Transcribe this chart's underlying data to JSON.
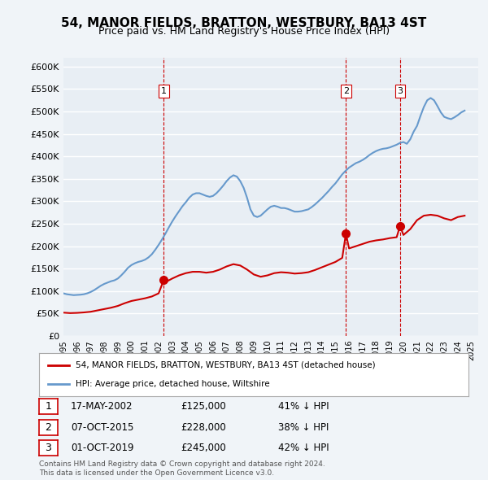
{
  "title": "54, MANOR FIELDS, BRATTON, WESTBURY, BA13 4ST",
  "subtitle": "Price paid vs. HM Land Registry's House Price Index (HPI)",
  "ylabel_ticks": [
    "£0",
    "£50K",
    "£100K",
    "£150K",
    "£200K",
    "£250K",
    "£300K",
    "£350K",
    "£400K",
    "£450K",
    "£500K",
    "£550K",
    "£600K"
  ],
  "ytick_values": [
    0,
    50000,
    100000,
    150000,
    200000,
    250000,
    300000,
    350000,
    400000,
    450000,
    500000,
    550000,
    600000
  ],
  "ylim": [
    0,
    620000
  ],
  "xlim_start": 1995.0,
  "xlim_end": 2025.5,
  "background_color": "#f0f4f8",
  "plot_bg_color": "#e8eef4",
  "grid_color": "#ffffff",
  "sale_color": "#cc0000",
  "hpi_color": "#6699cc",
  "sale_marker_color": "#cc0000",
  "vline_color": "#cc0000",
  "legend_sale": "54, MANOR FIELDS, BRATTON, WESTBURY, BA13 4ST (detached house)",
  "legend_hpi": "HPI: Average price, detached house, Wiltshire",
  "transactions": [
    {
      "num": 1,
      "date": "17-MAY-2002",
      "price": 125000,
      "pct": "41%",
      "year": 2002.38
    },
    {
      "num": 2,
      "date": "07-OCT-2015",
      "price": 228000,
      "pct": "38%",
      "year": 2015.77
    },
    {
      "num": 3,
      "date": "01-OCT-2019",
      "price": 245000,
      "pct": "42%",
      "year": 2019.75
    }
  ],
  "footer": "Contains HM Land Registry data © Crown copyright and database right 2024.\nThis data is licensed under the Open Government Licence v3.0.",
  "hpi_data": {
    "years": [
      1995.0,
      1995.25,
      1995.5,
      1995.75,
      1996.0,
      1996.25,
      1996.5,
      1996.75,
      1997.0,
      1997.25,
      1997.5,
      1997.75,
      1998.0,
      1998.25,
      1998.5,
      1998.75,
      1999.0,
      1999.25,
      1999.5,
      1999.75,
      2000.0,
      2000.25,
      2000.5,
      2000.75,
      2001.0,
      2001.25,
      2001.5,
      2001.75,
      2002.0,
      2002.25,
      2002.5,
      2002.75,
      2003.0,
      2003.25,
      2003.5,
      2003.75,
      2004.0,
      2004.25,
      2004.5,
      2004.75,
      2005.0,
      2005.25,
      2005.5,
      2005.75,
      2006.0,
      2006.25,
      2006.5,
      2006.75,
      2007.0,
      2007.25,
      2007.5,
      2007.75,
      2008.0,
      2008.25,
      2008.5,
      2008.75,
      2009.0,
      2009.25,
      2009.5,
      2009.75,
      2010.0,
      2010.25,
      2010.5,
      2010.75,
      2011.0,
      2011.25,
      2011.5,
      2011.75,
      2012.0,
      2012.25,
      2012.5,
      2012.75,
      2013.0,
      2013.25,
      2013.5,
      2013.75,
      2014.0,
      2014.25,
      2014.5,
      2014.75,
      2015.0,
      2015.25,
      2015.5,
      2015.75,
      2016.0,
      2016.25,
      2016.5,
      2016.75,
      2017.0,
      2017.25,
      2017.5,
      2017.75,
      2018.0,
      2018.25,
      2018.5,
      2018.75,
      2019.0,
      2019.25,
      2019.5,
      2019.75,
      2020.0,
      2020.25,
      2020.5,
      2020.75,
      2021.0,
      2021.25,
      2021.5,
      2021.75,
      2022.0,
      2022.25,
      2022.5,
      2022.75,
      2023.0,
      2023.25,
      2023.5,
      2023.75,
      2024.0,
      2024.25,
      2024.5
    ],
    "values": [
      95000,
      93000,
      92000,
      91000,
      91500,
      92000,
      93000,
      95000,
      98000,
      102000,
      107000,
      112000,
      116000,
      119000,
      122000,
      124000,
      128000,
      135000,
      143000,
      152000,
      158000,
      162000,
      165000,
      167000,
      170000,
      175000,
      182000,
      192000,
      203000,
      215000,
      228000,
      242000,
      255000,
      267000,
      278000,
      289000,
      298000,
      308000,
      315000,
      318000,
      318000,
      315000,
      312000,
      310000,
      312000,
      318000,
      326000,
      335000,
      345000,
      353000,
      358000,
      355000,
      345000,
      330000,
      308000,
      282000,
      268000,
      265000,
      268000,
      275000,
      282000,
      288000,
      290000,
      288000,
      285000,
      285000,
      283000,
      280000,
      277000,
      277000,
      278000,
      280000,
      282000,
      287000,
      293000,
      300000,
      307000,
      315000,
      323000,
      332000,
      340000,
      350000,
      360000,
      368000,
      375000,
      380000,
      385000,
      388000,
      392000,
      397000,
      403000,
      408000,
      412000,
      415000,
      417000,
      418000,
      420000,
      423000,
      426000,
      430000,
      432000,
      428000,
      438000,
      455000,
      468000,
      490000,
      510000,
      525000,
      530000,
      525000,
      512000,
      498000,
      488000,
      485000,
      483000,
      487000,
      492000,
      498000,
      502000
    ]
  },
  "sale_data": {
    "years": [
      1995.0,
      1995.5,
      1996.0,
      1996.5,
      1997.0,
      1997.5,
      1998.0,
      1998.5,
      1999.0,
      1999.5,
      2000.0,
      2000.5,
      2001.0,
      2001.5,
      2002.0,
      2002.38,
      2002.5,
      2003.0,
      2003.5,
      2004.0,
      2004.5,
      2005.0,
      2005.5,
      2006.0,
      2006.5,
      2007.0,
      2007.5,
      2008.0,
      2008.5,
      2009.0,
      2009.5,
      2010.0,
      2010.5,
      2011.0,
      2011.5,
      2012.0,
      2012.5,
      2013.0,
      2013.5,
      2014.0,
      2014.5,
      2015.0,
      2015.5,
      2015.77,
      2016.0,
      2016.5,
      2017.0,
      2017.5,
      2018.0,
      2018.5,
      2019.0,
      2019.5,
      2019.75,
      2020.0,
      2020.5,
      2021.0,
      2021.5,
      2022.0,
      2022.5,
      2023.0,
      2023.5,
      2024.0,
      2024.5
    ],
    "values": [
      52000,
      51000,
      51500,
      52500,
      54000,
      57000,
      60000,
      63000,
      67000,
      73000,
      78000,
      81000,
      84000,
      88000,
      95000,
      125000,
      120000,
      128000,
      135000,
      140000,
      143000,
      143000,
      141000,
      143000,
      148000,
      155000,
      160000,
      157000,
      148000,
      137000,
      132000,
      135000,
      140000,
      142000,
      141000,
      139000,
      140000,
      142000,
      147000,
      153000,
      159000,
      165000,
      174000,
      228000,
      195000,
      200000,
      205000,
      210000,
      213000,
      215000,
      218000,
      220000,
      245000,
      225000,
      238000,
      258000,
      268000,
      270000,
      268000,
      262000,
      258000,
      265000,
      268000
    ]
  }
}
